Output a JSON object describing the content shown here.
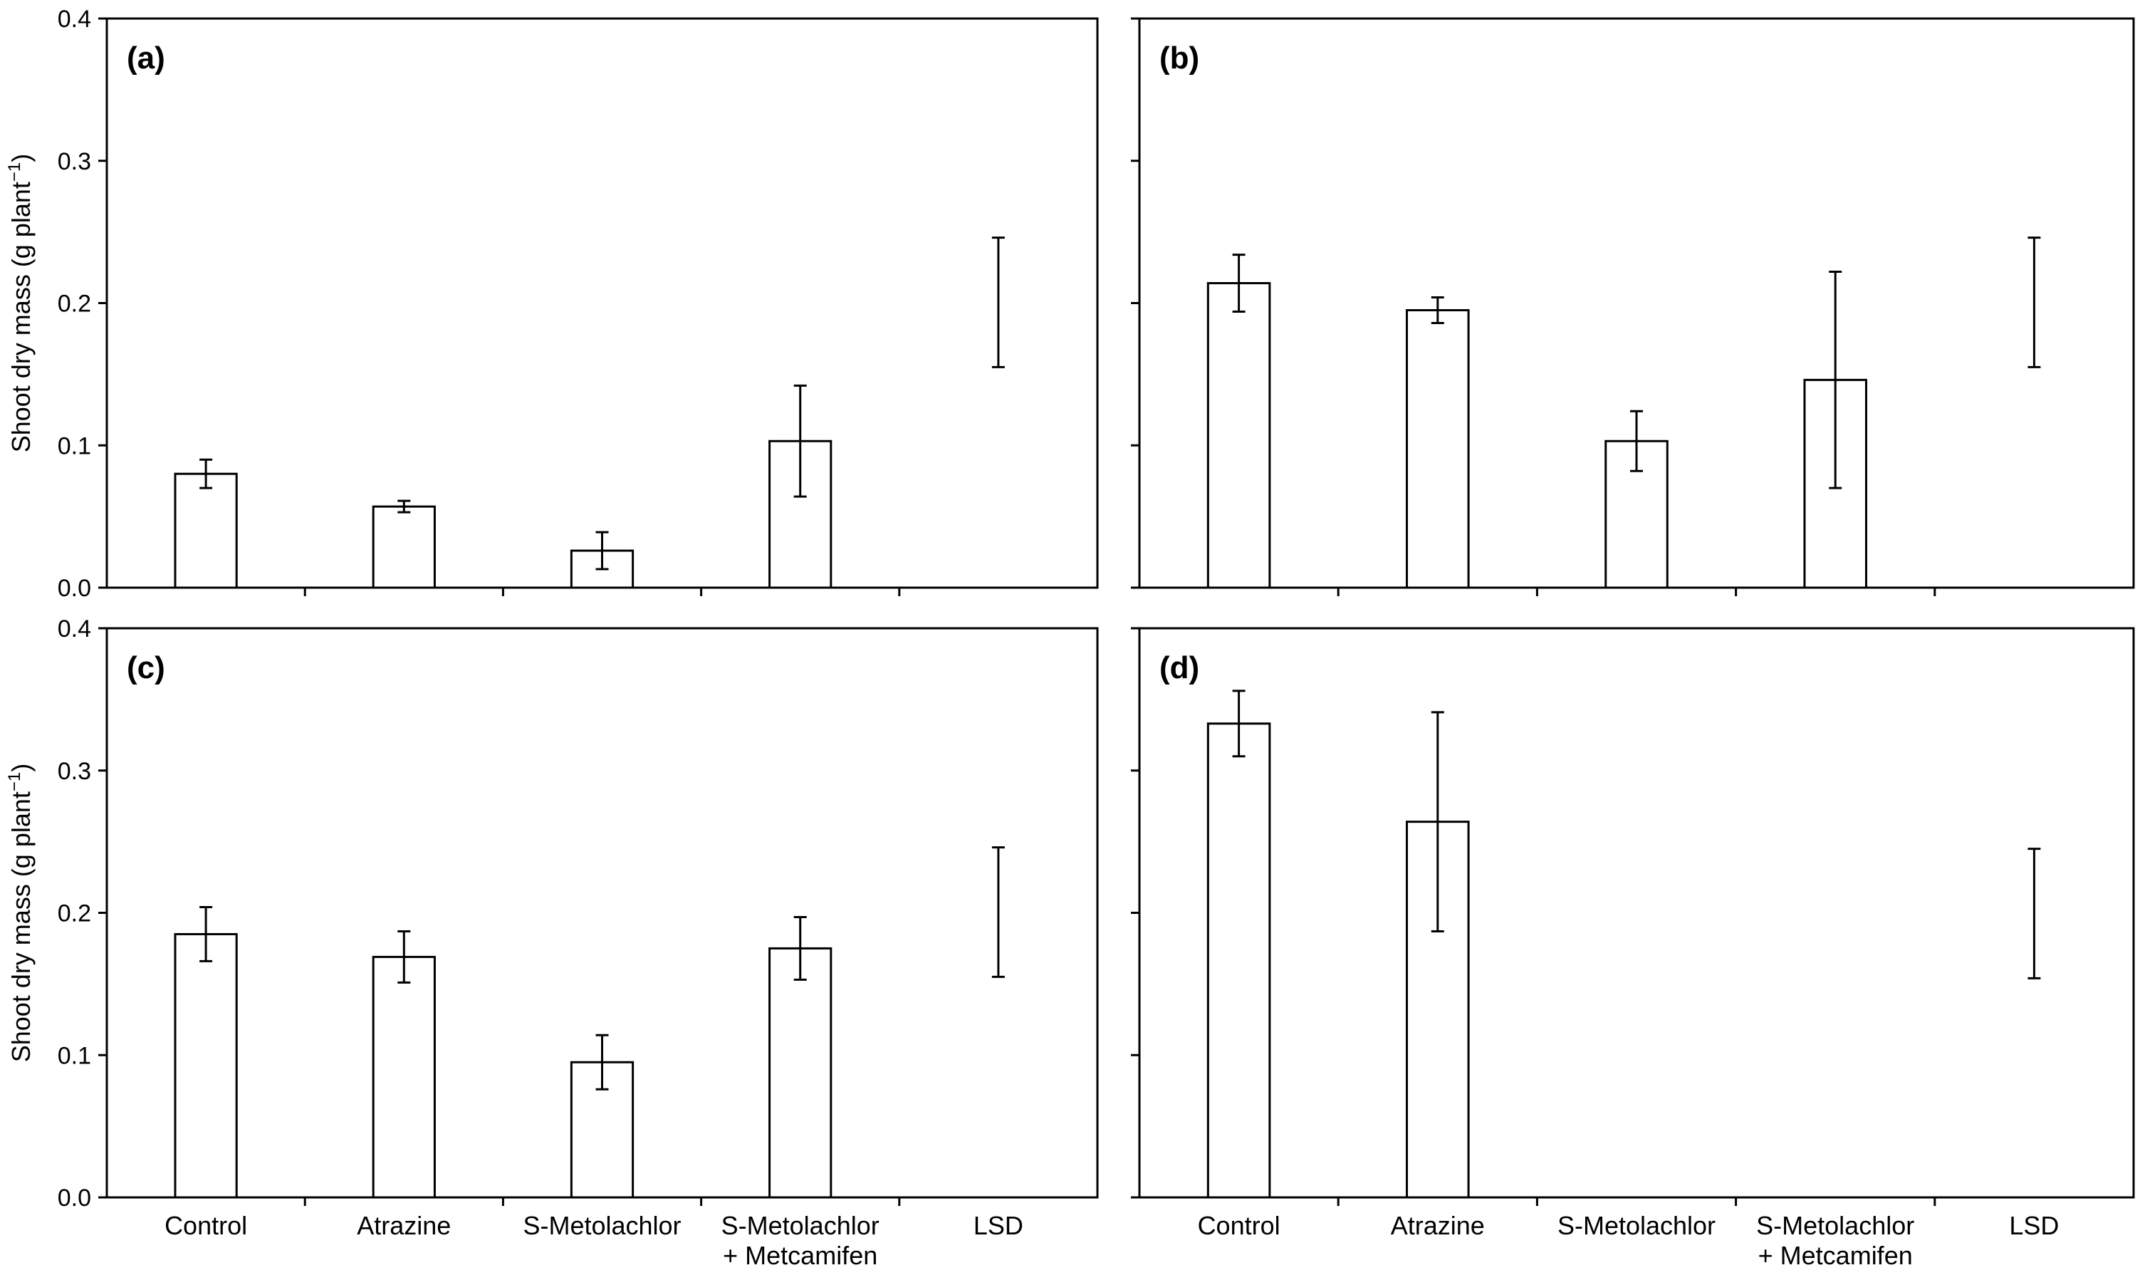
{
  "figure": {
    "y_axis_label_main": "Shoot dry mass (g plant",
    "y_axis_label_sup": "−1",
    "y_axis_label_close": ")"
  },
  "chart_data": [
    {
      "type": "bar",
      "panel_label": "(a)",
      "categories": [
        "Control",
        "Atrazine",
        "S-Metolachlor",
        "S-Metolachlor\n+ Metcamifen",
        "LSD"
      ],
      "values": [
        0.08,
        0.057,
        0.026,
        0.103,
        null
      ],
      "errors": [
        0.01,
        0.004,
        0.013,
        0.039,
        null
      ],
      "lsd": {
        "low": 0.155,
        "high": 0.246
      },
      "ylim": [
        0.0,
        0.4
      ],
      "yticks": [
        "0.0",
        "0.1",
        "0.2",
        "0.3",
        "0.4"
      ],
      "ylabel": "Shoot dry mass (g plant−1)",
      "show_y_tick_labels": true,
      "show_category_labels": false
    },
    {
      "type": "bar",
      "panel_label": "(b)",
      "categories": [
        "Control",
        "Atrazine",
        "S-Metolachlor",
        "S-Metolachlor\n+ Metcamifen",
        "LSD"
      ],
      "values": [
        0.214,
        0.195,
        0.103,
        0.146,
        null
      ],
      "errors": [
        0.02,
        0.009,
        0.021,
        0.076,
        null
      ],
      "lsd": {
        "low": 0.155,
        "high": 0.246
      },
      "ylim": [
        0.0,
        0.4
      ],
      "yticks": [
        "0.0",
        "0.1",
        "0.2",
        "0.3",
        "0.4"
      ],
      "ylabel": "",
      "show_y_tick_labels": false,
      "show_category_labels": false
    },
    {
      "type": "bar",
      "panel_label": "(c)",
      "categories": [
        "Control",
        "Atrazine",
        "S-Metolachlor",
        "S-Metolachlor\n+ Metcamifen",
        "LSD"
      ],
      "values": [
        0.185,
        0.169,
        0.095,
        0.175,
        null
      ],
      "errors": [
        0.019,
        0.018,
        0.019,
        0.022,
        null
      ],
      "lsd": {
        "low": 0.155,
        "high": 0.246
      },
      "ylim": [
        0.0,
        0.4
      ],
      "yticks": [
        "0.0",
        "0.1",
        "0.2",
        "0.3",
        "0.4"
      ],
      "ylabel": "Shoot dry mass (g plant−1)",
      "show_y_tick_labels": true,
      "show_category_labels": true
    },
    {
      "type": "bar",
      "panel_label": "(d)",
      "categories": [
        "Control",
        "Atrazine",
        "S-Metolachlor",
        "S-Metolachlor\n+ Metcamifen",
        "LSD"
      ],
      "values": [
        0.333,
        0.264,
        null,
        null,
        null
      ],
      "errors": [
        0.023,
        0.077,
        null,
        null,
        null
      ],
      "lsd": {
        "low": 0.154,
        "high": 0.245
      },
      "ylim": [
        0.0,
        0.4
      ],
      "yticks": [
        "0.0",
        "0.1",
        "0.2",
        "0.3",
        "0.4"
      ],
      "ylabel": "",
      "show_y_tick_labels": false,
      "show_category_labels": true
    }
  ]
}
